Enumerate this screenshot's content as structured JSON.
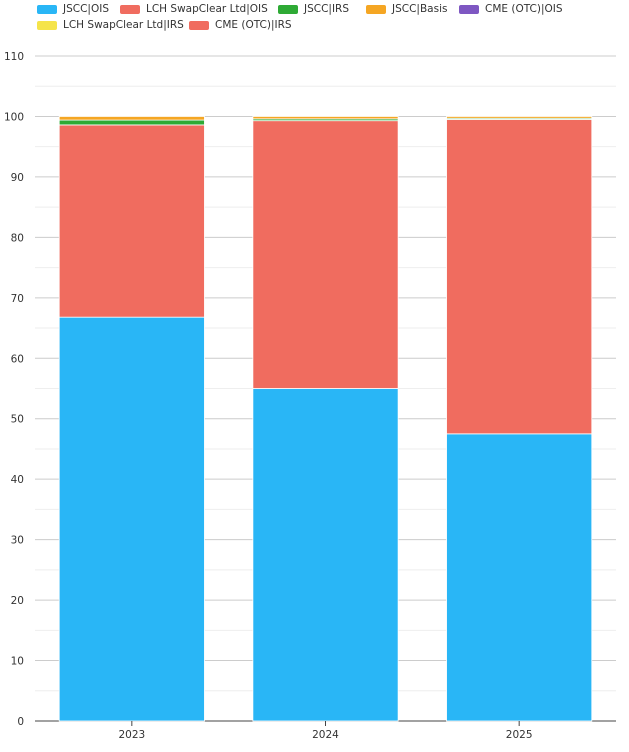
{
  "chart_data": {
    "type": "bar",
    "stacked": true,
    "title": "",
    "xlabel": "",
    "ylabel": "",
    "categories": [
      "2023",
      "2024",
      "2025"
    ],
    "ylim": [
      0,
      110
    ],
    "yticks": [
      0,
      10,
      20,
      30,
      40,
      50,
      60,
      70,
      80,
      90,
      100,
      110
    ],
    "grid": true,
    "legend_position": "top-left",
    "series": [
      {
        "name": "JSCC|OIS",
        "color": "#29b6f6",
        "values": [
          66.8,
          55.0,
          47.5
        ]
      },
      {
        "name": "LCH SwapClear Ltd|OIS",
        "color": "#f06c5f",
        "values": [
          31.8,
          44.3,
          52.0
        ]
      },
      {
        "name": "JSCC|IRS",
        "color": "#2eaa35",
        "values": [
          0.8,
          0.3,
          0.2
        ]
      },
      {
        "name": "JSCC|Basis",
        "color": "#f5a623",
        "values": [
          0.6,
          0.4,
          0.3
        ]
      },
      {
        "name": "CME (OTC)|OIS",
        "color": "#7e57c2",
        "values": [
          0,
          0,
          0
        ]
      },
      {
        "name": "LCH SwapClear Ltd|IRS",
        "color": "#f5e44a",
        "values": [
          0,
          0,
          0
        ]
      },
      {
        "name": "CME (OTC)|IRS",
        "color": "#f06c5f",
        "values": [
          0,
          0,
          0
        ]
      }
    ]
  }
}
